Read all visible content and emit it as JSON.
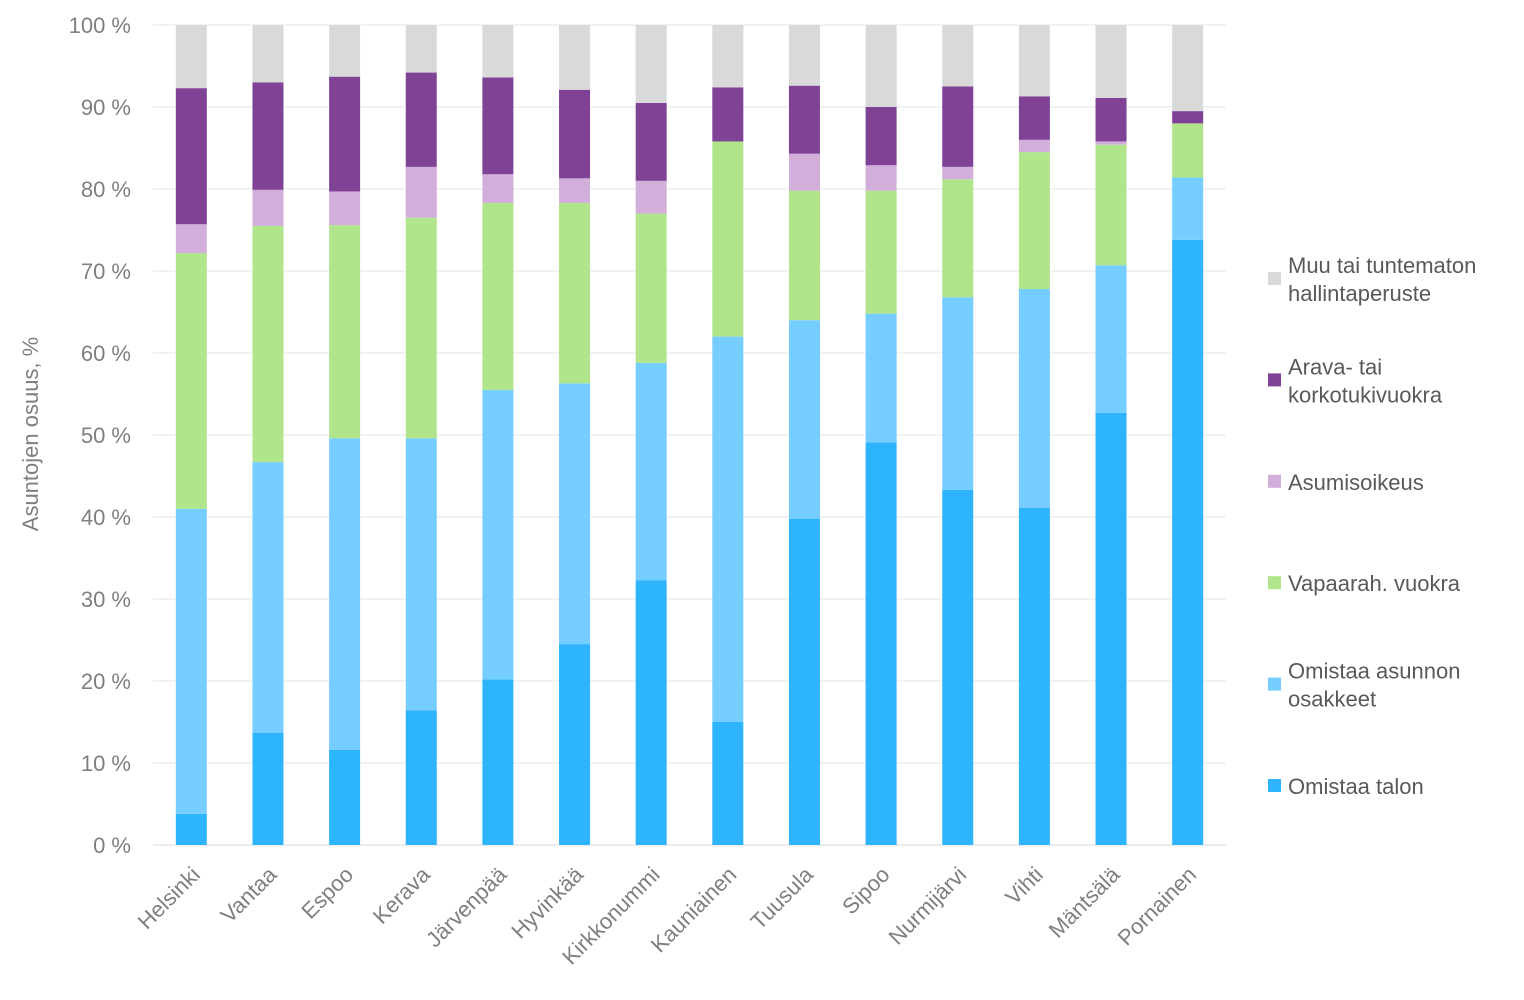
{
  "chart_data": {
    "type": "bar",
    "stacked": true,
    "title": "",
    "xlabel": "",
    "ylabel": "Asuntojen osuus, %",
    "ylim": [
      0,
      100
    ],
    "y_ticks": [
      0,
      10,
      20,
      30,
      40,
      50,
      60,
      70,
      80,
      90,
      100
    ],
    "y_tick_suffix": " %",
    "grid": true,
    "legend_position": "right",
    "categories": [
      "Helsinki",
      "Vantaa",
      "Espoo",
      "Kerava",
      "Järvenpää",
      "Hyvinkää",
      "Kirkkonummi",
      "Kauniainen",
      "Tuusula",
      "Sipoo",
      "Nurmijärvi",
      "Vihti",
      "Mäntsälä",
      "Pornainen"
    ],
    "series": [
      {
        "name": "Omistaa talon",
        "legend_lines": [
          "Omistaa talon"
        ],
        "color": "#2eb4fd",
        "values": [
          3.8,
          13.7,
          11.6,
          16.4,
          20.2,
          24.5,
          32.3,
          15.0,
          39.8,
          49.1,
          43.3,
          41.1,
          52.7,
          73.8
        ]
      },
      {
        "name": "Omistaa asunnon osakkeet",
        "legend_lines": [
          "Omistaa asunnon",
          "osakkeet"
        ],
        "color": "#76cdff",
        "values": [
          37.2,
          33.0,
          38.0,
          33.2,
          35.3,
          31.8,
          26.5,
          47.0,
          24.2,
          15.7,
          23.5,
          26.7,
          18.0,
          7.6
        ]
      },
      {
        "name": "Vapaarah. vuokra",
        "legend_lines": [
          "Vapaarah. vuokra"
        ],
        "color": "#b1e58b",
        "values": [
          31.2,
          28.8,
          26.0,
          26.9,
          22.8,
          22.0,
          18.2,
          23.8,
          15.8,
          15.0,
          14.4,
          16.7,
          14.7,
          6.6
        ]
      },
      {
        "name": "Asumisoikeus",
        "legend_lines": [
          "Asumisoikeus"
        ],
        "color": "#d2aedb",
        "values": [
          3.5,
          4.4,
          4.1,
          6.2,
          3.5,
          3.0,
          4.0,
          0.0,
          4.5,
          3.1,
          1.5,
          1.5,
          0.4,
          0.0
        ]
      },
      {
        "name": "Arava- tai korkotukivuokra",
        "legend_lines": [
          "Arava- tai",
          "korkotukivuokra"
        ],
        "color": "#7f4295",
        "values": [
          16.6,
          13.1,
          14.0,
          11.5,
          11.8,
          10.8,
          9.5,
          6.6,
          8.3,
          7.1,
          9.8,
          5.3,
          5.3,
          1.5
        ]
      },
      {
        "name": "Muu tai tuntematon hallintaperuste",
        "legend_lines": [
          "Muu tai tuntematon",
          "hallintaperuste"
        ],
        "color": "#d9d9d9",
        "values": [
          7.7,
          7.0,
          6.3,
          5.8,
          6.4,
          7.9,
          9.5,
          7.6,
          7.4,
          10.0,
          7.5,
          8.7,
          8.9,
          10.5
        ]
      }
    ]
  }
}
